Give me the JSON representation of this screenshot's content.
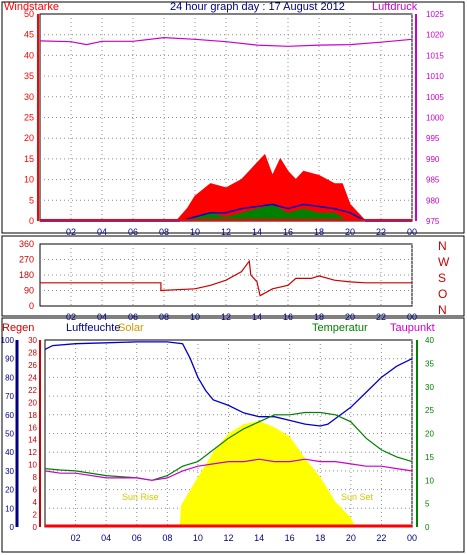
{
  "chart_data": [
    {
      "type": "line",
      "title": "24 hour graph day : 17 August 2012",
      "left_axis": {
        "label": "Windstarke",
        "color": "#ff0000",
        "ticks": [
          "0",
          "5",
          "10",
          "15",
          "20",
          "25",
          "30",
          "35",
          "40",
          "45",
          "50"
        ],
        "ylim": [
          0,
          50
        ]
      },
      "right_axis": {
        "label": "Luftdruck",
        "color": "#cc00cc",
        "ticks": [
          "975",
          "980",
          "985",
          "990",
          "995",
          "1000",
          "1005",
          "1010",
          "1015",
          "1020",
          "1025"
        ],
        "ylim": [
          975,
          1025
        ]
      },
      "x_ticks": [
        "02",
        "04",
        "06",
        "08",
        "10",
        "12",
        "14",
        "16",
        "18",
        "20",
        "22",
        "00"
      ],
      "grid": true,
      "series": [
        {
          "name": "Luftdruck",
          "color": "#cc00cc",
          "axis": "right",
          "x": [
            0,
            2,
            3,
            4,
            6,
            8,
            10,
            12,
            14,
            16,
            18,
            20,
            22,
            24
          ],
          "values": [
            1018.5,
            1018.3,
            1017.6,
            1018.4,
            1018.4,
            1019.3,
            1018.9,
            1018.3,
            1017.5,
            1017.2,
            1017.5,
            1017.6,
            1018.2,
            1018.9
          ]
        },
        {
          "name": "Windstarke (gust)",
          "color": "#ff0000",
          "axis": "left",
          "x": [
            0,
            8.8,
            9.5,
            10,
            11,
            12,
            13,
            13.5,
            14,
            14.5,
            15,
            15.5,
            16,
            16.5,
            17,
            18,
            19,
            19.5,
            20,
            20.5,
            21,
            24
          ],
          "values": [
            0,
            0,
            3,
            6,
            9,
            8,
            10,
            12,
            14,
            16,
            11,
            15,
            12,
            10,
            12,
            11,
            9,
            9,
            4,
            2,
            0,
            0
          ]
        },
        {
          "name": "Windstarke (mean)",
          "color": "#0000cc",
          "axis": "left",
          "x": [
            0,
            9,
            10,
            11,
            12,
            13,
            14,
            15,
            16,
            17,
            18,
            19,
            20,
            21,
            24
          ],
          "values": [
            0,
            0,
            1,
            2,
            2,
            3,
            3.5,
            4,
            3,
            4,
            3.5,
            3,
            2,
            0,
            0
          ]
        },
        {
          "name": "Windstarke (min)",
          "color": "#008000",
          "axis": "left",
          "x": [
            0,
            9.5,
            10,
            11,
            12,
            13,
            14,
            15,
            16,
            17,
            18,
            19,
            20,
            24
          ],
          "values": [
            0,
            0,
            1,
            2,
            1,
            2,
            3,
            4,
            2,
            3,
            2,
            2,
            0,
            0
          ]
        }
      ]
    },
    {
      "type": "line",
      "right_axis": {
        "ticks": [
          "N",
          "W",
          "S",
          "O",
          "N"
        ]
      },
      "left_axis": {
        "ticks": [
          "0",
          "90",
          "180",
          "270",
          "360"
        ],
        "ylim": [
          0,
          360
        ]
      },
      "x_ticks": [
        "02",
        "04",
        "06",
        "08",
        "10",
        "12",
        "14",
        "16",
        "18",
        "20",
        "22",
        "00"
      ],
      "grid": true,
      "series": [
        {
          "name": "Windrichtung",
          "color": "#cc0000",
          "x": [
            0,
            7.8,
            7.8,
            10,
            11,
            12,
            13,
            13.5,
            13.6,
            14,
            14.2,
            15,
            16,
            16.5,
            17.5,
            18,
            19,
            20,
            21,
            24
          ],
          "values": [
            135,
            135,
            90,
            100,
            120,
            150,
            200,
            260,
            180,
            140,
            60,
            100,
            120,
            160,
            160,
            175,
            150,
            140,
            135,
            135
          ]
        }
      ]
    },
    {
      "type": "line",
      "labels": {
        "regen": "Regen",
        "luftfeuchte": "Luftfeuchte",
        "solar": "Solar",
        "temperatur": "Temperatur",
        "taupunkt": "Taupunkt",
        "sunrise": "Sun Rise",
        "sunset": "Sun Set"
      },
      "axes": {
        "luftfeuchte": {
          "color": "#000080",
          "ticks": [
            "0",
            "10",
            "20",
            "30",
            "40",
            "50",
            "60",
            "70",
            "80",
            "90",
            "100"
          ],
          "ylim": [
            0,
            100
          ]
        },
        "regen": {
          "color": "#cc0000",
          "ticks": [
            "0",
            "2",
            "4",
            "6",
            "8",
            "10",
            "12",
            "14",
            "16",
            "18",
            "20",
            "22",
            "24",
            "26",
            "28",
            "30"
          ],
          "ylim": [
            0,
            30
          ]
        },
        "temperatur": {
          "color": "#008000",
          "ticks": [
            "0",
            "5",
            "10",
            "15",
            "20",
            "25",
            "30",
            "35",
            "40"
          ],
          "ylim": [
            0,
            40
          ]
        }
      },
      "x_ticks": [
        "02",
        "04",
        "06",
        "08",
        "10",
        "12",
        "14",
        "16",
        "18",
        "20",
        "22",
        "00"
      ],
      "grid": true,
      "series": [
        {
          "name": "Solar",
          "color": "#ffff00",
          "axis": "regen",
          "x": [
            0,
            8.8,
            8.9,
            10,
            11,
            12,
            13,
            14,
            15,
            16,
            17,
            18,
            19,
            20,
            20.3,
            24
          ],
          "values": [
            0,
            0,
            3.5,
            8,
            12,
            15,
            16.5,
            17,
            16,
            14.5,
            11,
            8,
            4,
            1.5,
            0,
            0
          ]
        },
        {
          "name": "Luftfeuchte",
          "color": "#0000cc",
          "axis": "luftfeuchte",
          "x": [
            0,
            0.5,
            2,
            4,
            6,
            8,
            9,
            9.5,
            10,
            10.5,
            11,
            12,
            13,
            14,
            15,
            16,
            17,
            18,
            18.5,
            19,
            20,
            21,
            22,
            23,
            24
          ],
          "values": [
            95,
            97,
            98,
            98.5,
            99,
            99,
            98,
            90,
            80,
            73,
            68,
            65,
            61,
            59,
            59,
            57,
            55,
            54,
            55,
            58,
            64,
            72,
            80,
            86,
            90
          ]
        },
        {
          "name": "Temperatur",
          "color": "#008000",
          "axis": "temperatur",
          "x": [
            0,
            1,
            2,
            4,
            6,
            7,
            8,
            9,
            10,
            11,
            12,
            13,
            14,
            15,
            16,
            17,
            18,
            19,
            20,
            21,
            22,
            23,
            24
          ],
          "values": [
            12.5,
            12.2,
            12,
            11,
            10.5,
            10,
            11,
            13,
            14,
            16.5,
            19,
            21,
            22.5,
            24,
            24,
            24.5,
            24.5,
            24,
            22.5,
            19,
            16.5,
            15,
            14
          ]
        },
        {
          "name": "Taupunkt",
          "color": "#cc00cc",
          "axis": "temperatur",
          "x": [
            0,
            1,
            2,
            4,
            6,
            7,
            8,
            9,
            10,
            11,
            12,
            13,
            14,
            15,
            16,
            17,
            18,
            19,
            20,
            21,
            22,
            23,
            24
          ],
          "values": [
            12,
            11.5,
            11.5,
            10.5,
            10.5,
            10,
            10.5,
            12,
            13,
            13.5,
            14,
            14,
            14.5,
            14,
            14,
            14.5,
            14,
            14,
            13.5,
            13,
            13,
            12.5,
            12
          ]
        },
        {
          "name": "Regen",
          "color": "#ff0000",
          "axis": "regen",
          "x": [
            0,
            24
          ],
          "values": [
            0,
            0
          ]
        }
      ]
    }
  ]
}
